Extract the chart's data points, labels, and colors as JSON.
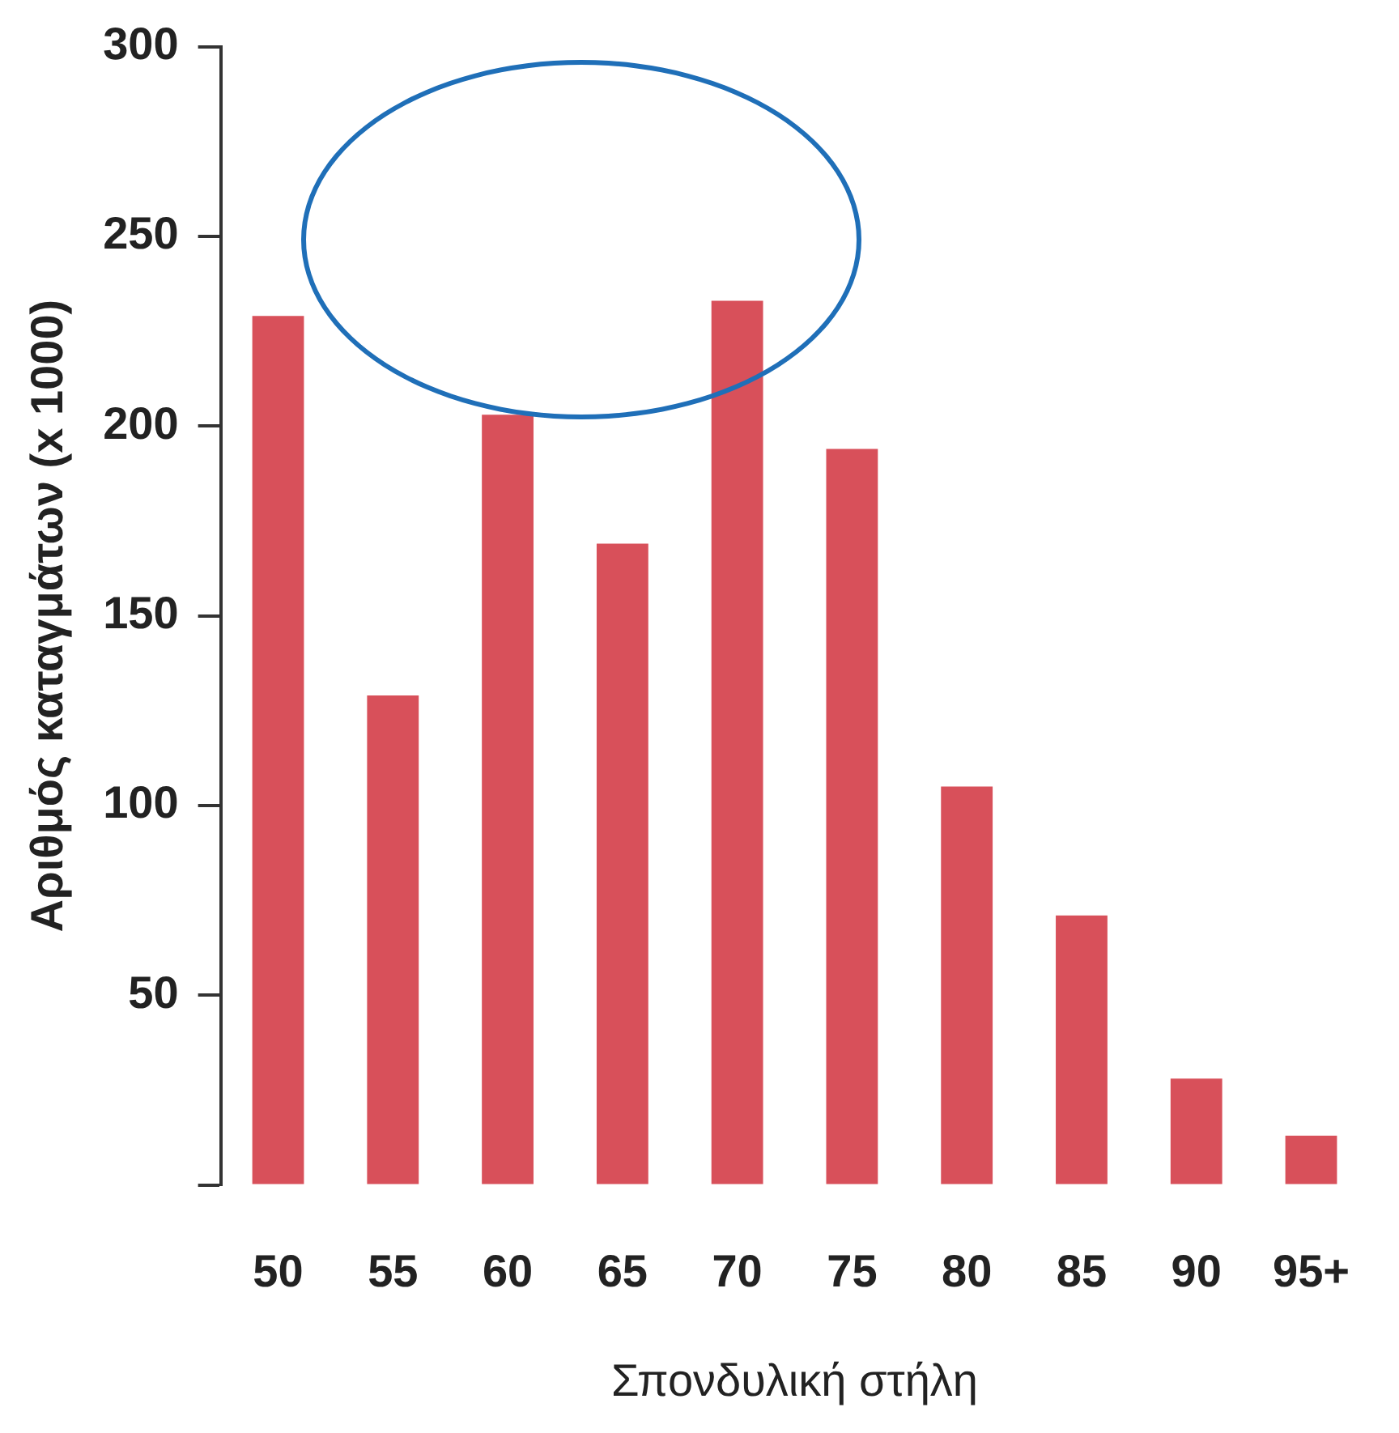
{
  "chart_data": {
    "type": "bar",
    "xlabel": "Σπονδυλική στήλη",
    "ylabel": "Αριθμός καταγμάτων (x 1000)",
    "categories": [
      "50",
      "55",
      "60",
      "65",
      "70",
      "75",
      "80",
      "85",
      "90",
      "95+"
    ],
    "values": [
      229,
      129,
      203,
      169,
      233,
      194,
      105,
      71,
      28,
      13
    ],
    "color": "#d8505a",
    "ylim": [
      0,
      300
    ],
    "yticks": [
      {
        "value": 0,
        "label": null
      },
      50,
      100,
      150,
      200,
      250,
      300
    ],
    "grid": false,
    "legend": false
  }
}
